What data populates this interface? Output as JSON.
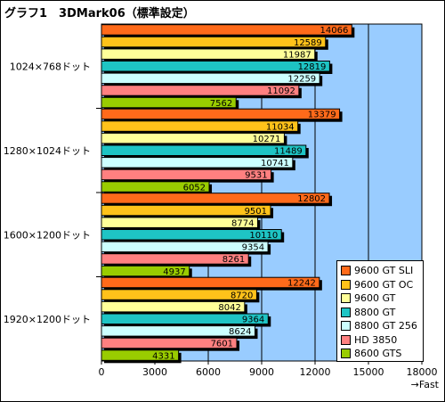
{
  "chart_data": {
    "type": "bar",
    "orientation": "horizontal",
    "title": "グラフ1　3DMark06（標準設定）",
    "categories": [
      "1024×768ドット",
      "1280×1024ドット",
      "1600×1200ドット",
      "1920×1200ドット"
    ],
    "series": [
      {
        "name": "9600 GT SLI",
        "color": "#ff6a1a",
        "values": [
          14066,
          13379,
          12802,
          12242
        ]
      },
      {
        "name": "9600 GT OC",
        "color": "#ffc21a",
        "values": [
          12589,
          11034,
          9501,
          8720
        ]
      },
      {
        "name": "9600 GT",
        "color": "#ffff99",
        "values": [
          11987,
          10271,
          8774,
          8042
        ]
      },
      {
        "name": "8800 GT",
        "color": "#1ec4c4",
        "values": [
          12819,
          11489,
          10110,
          9364
        ]
      },
      {
        "name": "8800 GT 256",
        "color": "#ccffff",
        "values": [
          12259,
          10741,
          9354,
          8624
        ]
      },
      {
        "name": "HD 3850",
        "color": "#ff8080",
        "values": [
          11092,
          9531,
          8261,
          7601
        ]
      },
      {
        "name": "8600 GTS",
        "color": "#99cc00",
        "values": [
          7562,
          6052,
          4937,
          4331
        ]
      }
    ],
    "xlim": [
      0,
      18000
    ],
    "xticks": [
      0,
      3000,
      6000,
      9000,
      12000,
      15000,
      18000
    ],
    "xlabel": "→Fast",
    "plot_background": "#99ccff",
    "grid": true,
    "legend_position": "bottom-right",
    "data_labels": true
  }
}
